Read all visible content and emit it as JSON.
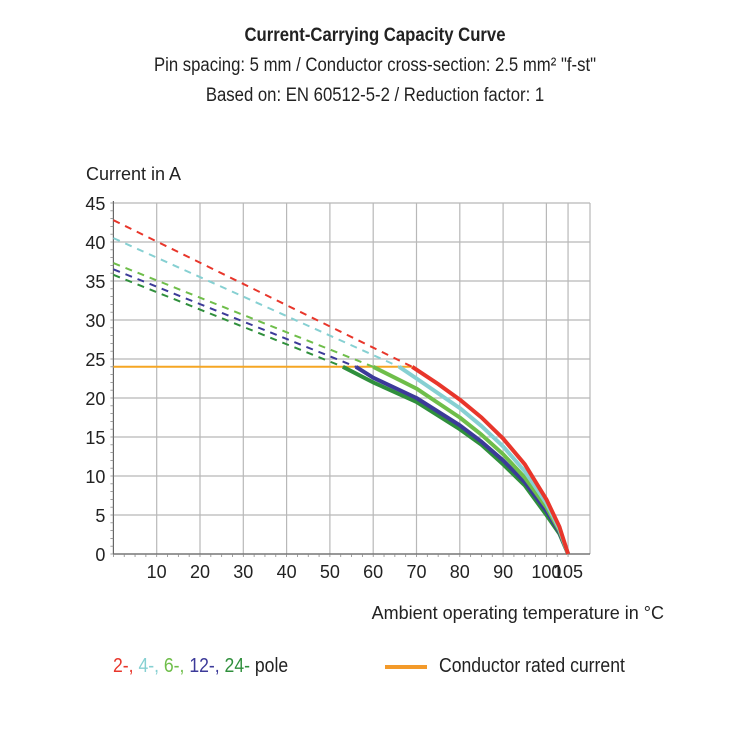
{
  "chart_data": {
    "type": "line",
    "title": "Current-Carrying Capacity Curve",
    "subtitle": [
      "Pin spacing: 5 mm / Conductor cross-section: 2.5 mm² \"f-st\"",
      "Based on: EN 60512-5-2 / Reduction factor: 1"
    ],
    "xlabel": "Ambient operating temperature in °C",
    "ylabel": "Current in A",
    "xlim": [
      0,
      105
    ],
    "ylim": [
      0,
      45
    ],
    "xticks": [
      10,
      20,
      30,
      40,
      50,
      60,
      70,
      80,
      90,
      100,
      105
    ],
    "yticks": [
      0,
      5,
      10,
      15,
      20,
      25,
      30,
      35,
      40,
      45
    ],
    "grid": true,
    "rated_current": {
      "name": "Conductor rated current",
      "value": 24,
      "color": "#f5a623"
    },
    "series": [
      {
        "name": "2-",
        "color": "#e8362b",
        "dashed": [
          [
            0,
            42.8
          ],
          [
            69,
            24
          ]
        ],
        "solid": [
          [
            69,
            24
          ],
          [
            75,
            21.8
          ],
          [
            80,
            19.8
          ],
          [
            85,
            17.5
          ],
          [
            90,
            14.8
          ],
          [
            95,
            11.5
          ],
          [
            100,
            7
          ],
          [
            103,
            3.5
          ],
          [
            105,
            0
          ]
        ]
      },
      {
        "name": "4-",
        "color": "#86d0d2",
        "dashed": [
          [
            0,
            40.5
          ],
          [
            66,
            24
          ]
        ],
        "solid": [
          [
            66,
            24
          ],
          [
            70,
            22.5
          ],
          [
            80,
            18.7
          ],
          [
            85,
            16.4
          ],
          [
            90,
            13.8
          ],
          [
            95,
            10.6
          ],
          [
            100,
            6.5
          ],
          [
            103,
            3.2
          ],
          [
            105,
            0
          ]
        ]
      },
      {
        "name": "6-",
        "color": "#6fbe4a",
        "dashed": [
          [
            0,
            37.3
          ],
          [
            60,
            24
          ]
        ],
        "solid": [
          [
            60,
            24
          ],
          [
            70,
            21.2
          ],
          [
            80,
            17.5
          ],
          [
            85,
            15.3
          ],
          [
            90,
            12.8
          ],
          [
            95,
            9.8
          ],
          [
            100,
            6
          ],
          [
            103,
            3
          ],
          [
            105,
            0
          ]
        ]
      },
      {
        "name": "12-",
        "color": "#3c3a99",
        "dashed": [
          [
            0,
            36.5
          ],
          [
            56,
            24
          ]
        ],
        "solid": [
          [
            56,
            24
          ],
          [
            60,
            22.6
          ],
          [
            70,
            20
          ],
          [
            80,
            16.5
          ],
          [
            85,
            14.4
          ],
          [
            90,
            12
          ],
          [
            95,
            9.2
          ],
          [
            100,
            5.5
          ],
          [
            103,
            2.8
          ],
          [
            105,
            0
          ]
        ]
      },
      {
        "name": "24-",
        "color": "#2f8f3c",
        "dashed": [
          [
            0,
            35.8
          ],
          [
            53,
            24
          ]
        ],
        "solid": [
          [
            53,
            24
          ],
          [
            60,
            22
          ],
          [
            70,
            19.5
          ],
          [
            80,
            16
          ],
          [
            85,
            14
          ],
          [
            90,
            11.5
          ],
          [
            95,
            8.8
          ],
          [
            100,
            5
          ],
          [
            103,
            2.6
          ],
          [
            105,
            0
          ]
        ]
      }
    ],
    "legend_suffix": " pole"
  }
}
